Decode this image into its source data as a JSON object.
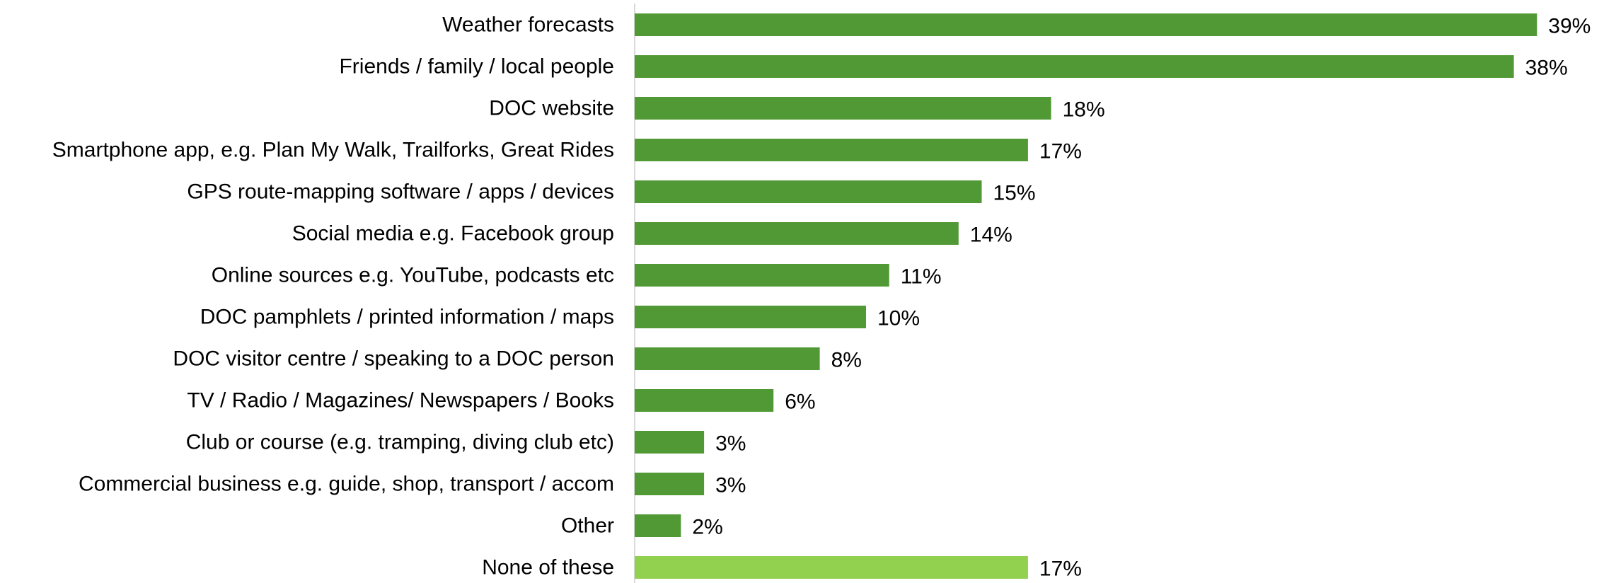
{
  "chart_data": {
    "type": "bar",
    "orientation": "horizontal",
    "title": "",
    "xlabel": "",
    "ylabel": "",
    "xlim": [
      0,
      40
    ],
    "grid": false,
    "legend": "none",
    "value_suffix": "%",
    "colors": {
      "primary": "#519935",
      "highlight": "#92D050",
      "axis": "#d9d9d9"
    },
    "categories": [
      "Weather forecasts",
      "Friends / family / local people",
      "DOC website",
      "Smartphone app, e.g. Plan My Walk, Trailforks, Great Rides",
      "GPS route-mapping software / apps / devices",
      "Social media e.g. Facebook group",
      "Online sources e.g. YouTube, podcasts etc",
      "DOC pamphlets / printed information / maps",
      "DOC visitor centre / speaking to a DOC person",
      "TV / Radio / Magazines/ Newspapers / Books",
      "Club or course (e.g. tramping, diving club etc)",
      "Commercial business e.g. guide, shop, transport / accom",
      "Other",
      "None of these"
    ],
    "values": [
      39,
      38,
      18,
      17,
      15,
      14,
      11,
      10,
      8,
      6,
      3,
      3,
      2,
      17
    ],
    "highlighted": [
      "None of these"
    ]
  }
}
